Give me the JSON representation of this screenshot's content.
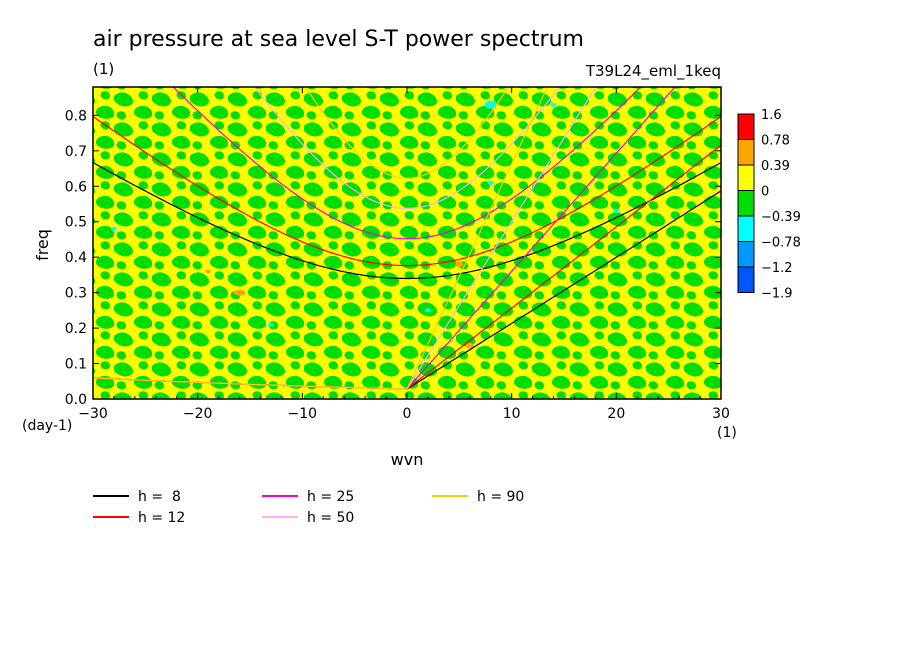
{
  "chart_data": {
    "type": "heatmap",
    "title": "air pressure at sea level S-T power spectrum",
    "subtitle_left": "(1)",
    "subtitle_right": "T39L24_eml_1keq",
    "xlabel": "wvn",
    "ylabel": "freq",
    "x_unit": "(1)",
    "y_unit": "(day-1)",
    "xlim": [
      -30,
      30
    ],
    "ylim": [
      0,
      0.88
    ],
    "xticks": [
      -30,
      -20,
      -10,
      0,
      10,
      20,
      30
    ],
    "yticks": [
      0.0,
      0.1,
      0.2,
      0.3,
      0.4,
      0.5,
      0.6,
      0.7,
      0.8
    ],
    "colorbar": {
      "labels": [
        "1.6",
        "0.78",
        "0.39",
        "0",
        "-0.39",
        "-0.78",
        "-1.2",
        "-1.9"
      ],
      "colors": [
        "#ff0000",
        "#ffa500",
        "#ffff00",
        "#00dd00",
        "#00ffff",
        "#0099ff",
        "#0055ff"
      ]
    },
    "field_colors": {
      "positive": "#ffff00",
      "negative": "#00dd00",
      "strong_positive": "#ffa500",
      "strong_negative": "#00ffff"
    },
    "dispersion_curves": [
      {
        "name": "h =  8",
        "color": "#000000",
        "h": 8
      },
      {
        "name": "h = 12",
        "color": "#ff0000",
        "h": 12
      },
      {
        "name": "h = 25",
        "color": "#ff00cc",
        "h": 25
      },
      {
        "name": "h = 50",
        "color": "#ffaaff",
        "h": 50
      },
      {
        "name": "h = 90",
        "color": "#ffcc00",
        "h": 90
      }
    ],
    "legend_position": "bottom-left"
  }
}
